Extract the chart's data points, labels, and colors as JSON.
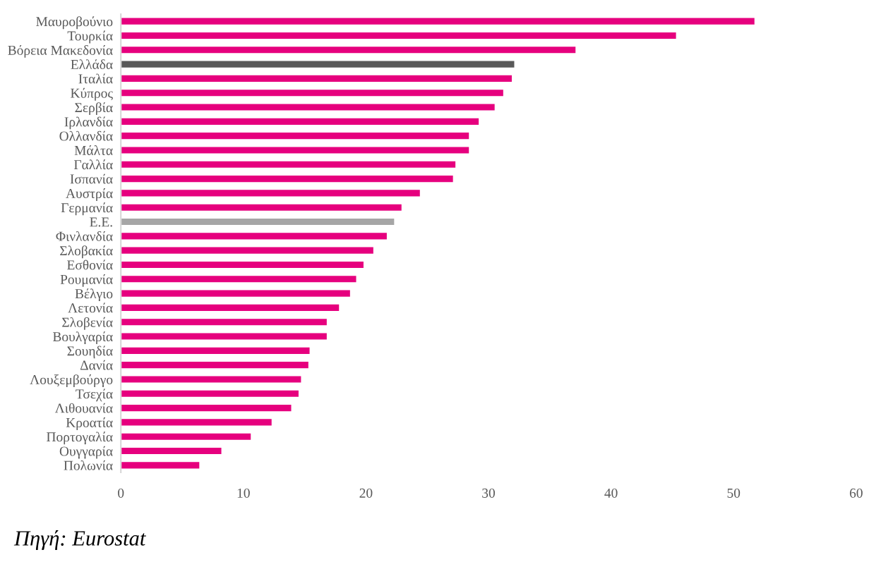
{
  "chart_data": {
    "type": "bar",
    "orientation": "horizontal",
    "categories": [
      "Μαυροβούνιο",
      "Τουρκία",
      "Βόρεια Μακεδονία",
      "Ελλάδα",
      "Ιταλία",
      "Κύπρος",
      "Σερβία",
      "Ιρλανδία",
      "Ολλανδία",
      "Μάλτα",
      "Γαλλία",
      "Ισπανία",
      "Αυστρία",
      "Γερμανία",
      "Ε.Ε.",
      "Φινλανδία",
      "Σλοβακία",
      "Εσθονία",
      "Ρουμανία",
      "Βέλγιο",
      "Λετονία",
      "Σλοβενία",
      "Βουλγαρία",
      "Σουηδία",
      "Δανία",
      "Λουξεμβούργο",
      "Τσεχία",
      "Λιθουανία",
      "Κροατία",
      "Πορτογαλία",
      "Ουγγαρία",
      "Πολωνία"
    ],
    "values": [
      51.7,
      45.3,
      37.1,
      32.1,
      31.9,
      31.2,
      30.5,
      29.2,
      28.4,
      28.4,
      27.3,
      27.1,
      24.4,
      22.9,
      22.3,
      21.7,
      20.6,
      19.8,
      19.2,
      18.7,
      17.8,
      16.8,
      16.8,
      15.4,
      15.3,
      14.7,
      14.5,
      13.9,
      12.3,
      10.6,
      8.2,
      6.4
    ],
    "colors": [
      "#e6007e",
      "#e6007e",
      "#e6007e",
      "#595959",
      "#e6007e",
      "#e6007e",
      "#e6007e",
      "#e6007e",
      "#e6007e",
      "#e6007e",
      "#e6007e",
      "#e6007e",
      "#e6007e",
      "#e6007e",
      "#a6a6a6",
      "#e6007e",
      "#e6007e",
      "#e6007e",
      "#e6007e",
      "#e6007e",
      "#e6007e",
      "#e6007e",
      "#e6007e",
      "#e6007e",
      "#e6007e",
      "#e6007e",
      "#e6007e",
      "#e6007e",
      "#e6007e",
      "#e6007e",
      "#e6007e",
      "#e6007e"
    ],
    "xlim": [
      0,
      60
    ],
    "xticks": [
      0,
      10,
      20,
      30,
      40,
      50,
      60
    ],
    "grid": false,
    "legend": false,
    "annotations": [
      "Πηγή: Eurostat"
    ]
  }
}
